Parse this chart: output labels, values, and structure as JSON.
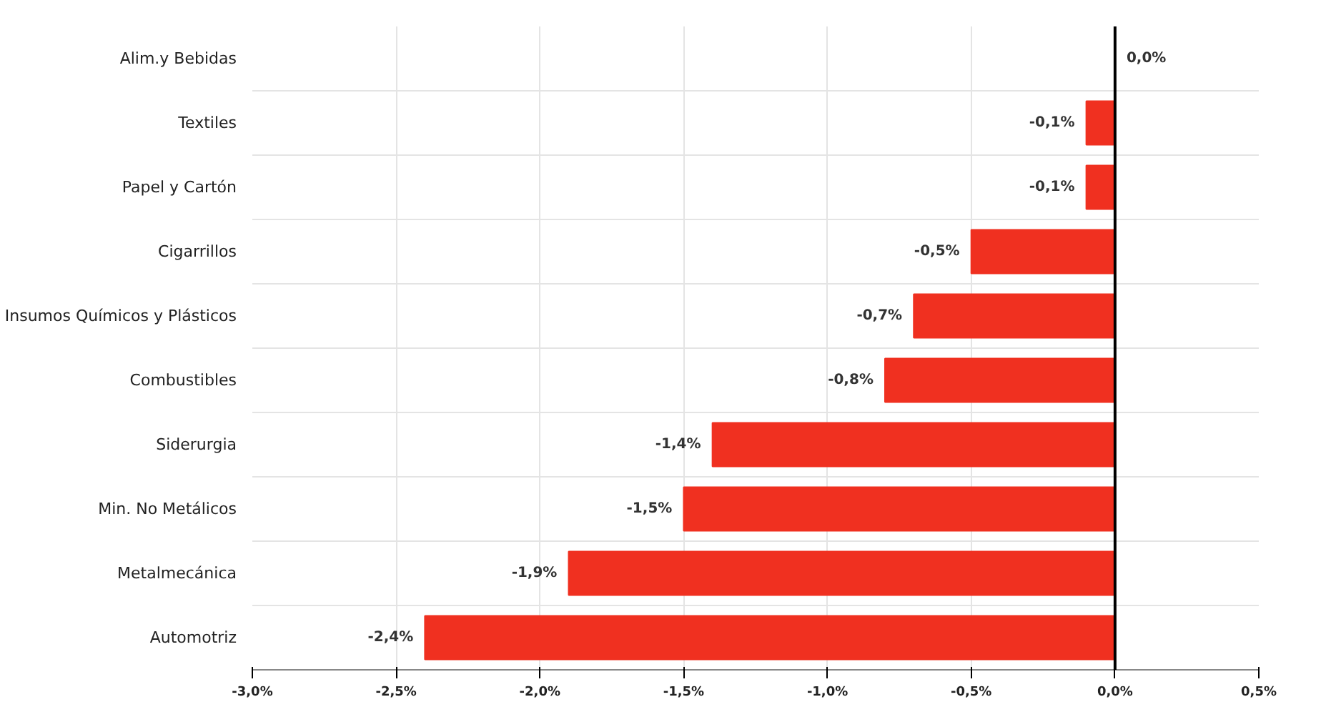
{
  "chart_data": {
    "type": "bar",
    "orientation": "horizontal",
    "categories": [
      "Alim.y Bebidas",
      "Textiles",
      "Papel y Cartón",
      "Cigarrillos",
      "Insumos Químicos y Plásticos",
      "Combustibles",
      "Siderurgia",
      "Min. No Metálicos",
      "Metalmecánica",
      "Automotriz"
    ],
    "values": [
      0.0,
      -0.1,
      -0.1,
      -0.5,
      -0.7,
      -0.8,
      -1.4,
      -1.5,
      -1.9,
      -2.4
    ],
    "value_labels": [
      "0,0%",
      "-0,1%",
      "-0,1%",
      "-0,5%",
      "-0,7%",
      "-0,8%",
      "-1,4%",
      "-1,5%",
      "-1,9%",
      "-2,4%"
    ],
    "color": "#f03020",
    "xlim": [
      -3.0,
      0.5
    ],
    "xticks": [
      {
        "value": -3.0,
        "label": "-3,0%"
      },
      {
        "value": -2.5,
        "label": "-2,5%"
      },
      {
        "value": -2.0,
        "label": "-2,0%"
      },
      {
        "value": -1.5,
        "label": "-1,5%"
      },
      {
        "value": -1.0,
        "label": "-1,0%"
      },
      {
        "value": -0.5,
        "label": "-0,5%"
      },
      {
        "value": 0.0,
        "label": "0,0%"
      },
      {
        "value": 0.5,
        "label": "0,5%"
      }
    ],
    "ref_lines": [
      {
        "axis": "x",
        "value": 0,
        "color": "#000000"
      }
    ],
    "grid": true
  }
}
